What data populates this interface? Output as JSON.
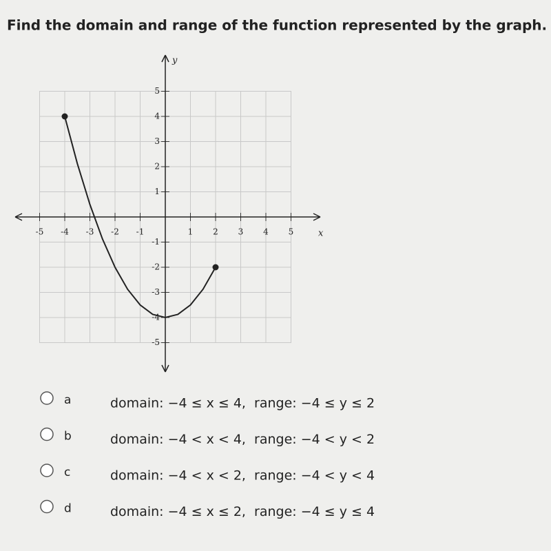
{
  "question": "Find the domain and range of the function represented by the graph.",
  "graph": {
    "type": "line",
    "x_label": "x",
    "y_label": "y",
    "x": [
      -4,
      -3.5,
      -3,
      -2.5,
      -2,
      -1.5,
      -1,
      -0.5,
      0,
      0.5,
      1,
      1.5,
      2
    ],
    "y": [
      4,
      2.125,
      0.5,
      -0.875,
      -2,
      -2.875,
      -3.5,
      -3.875,
      -4,
      -3.875,
      -3.5,
      -2.875,
      -2
    ],
    "xlim": [
      -5,
      5
    ],
    "ylim": [
      -5,
      5
    ],
    "xticks": [
      -5,
      -4,
      -3,
      -2,
      -1,
      1,
      2,
      3,
      4,
      5
    ],
    "yticks": [
      5,
      4,
      3,
      2,
      1,
      -1,
      -2,
      -3,
      -4,
      -5
    ],
    "grid": true,
    "color": "#222222"
  },
  "options": [
    {
      "letter": "a",
      "text": "domain: −4 ≤ x ≤ 4,  range: −4 ≤ y ≤ 2"
    },
    {
      "letter": "b",
      "text": "domain: −4 < x < 4,  range: −4 < y < 2"
    },
    {
      "letter": "c",
      "text": "domain: −4 < x < 2,  range: −4 < y < 4"
    },
    {
      "letter": "d",
      "text": "domain: −4 ≤ x ≤ 2,  range: −4 ≤ y ≤ 4"
    }
  ]
}
